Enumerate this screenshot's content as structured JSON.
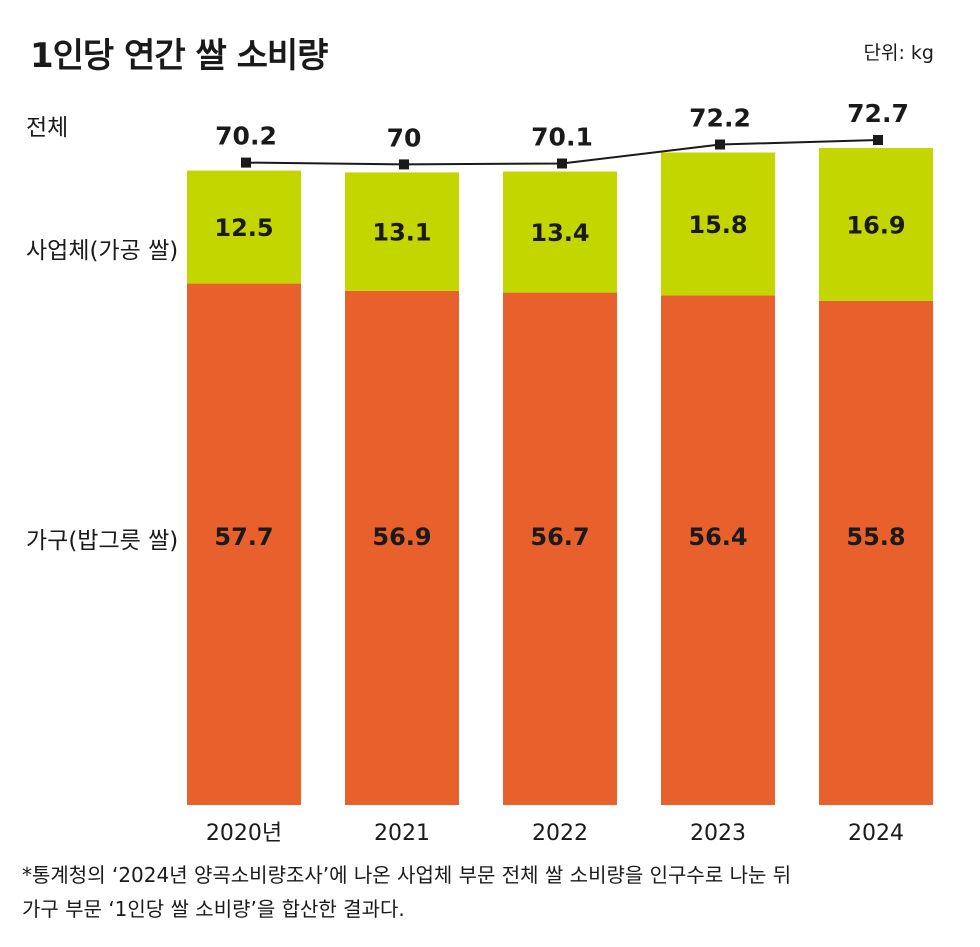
{
  "title": "1인당 연간 쌀 소비량",
  "unit_label": "단위: kg",
  "row_labels": {
    "total": "전체",
    "business": "사업체(가공 쌀)",
    "household": "가구(밥그릇 쌀)"
  },
  "footnote": {
    "line1": "*통계청의 ‘2024년 양곡소비량조사’에 나온 사업체 부문 전체 쌀 소비량을 인구수로 나눈 뒤",
    "line2": "가구 부문 ‘1인당 쌀 소비량’을 합산한 결과다."
  },
  "colors": {
    "household": "#E8612C",
    "business": "#C4D600",
    "line": "#1a1a1a"
  },
  "chart_data": {
    "type": "bar",
    "stacked": true,
    "title": "1인당 연간 쌀 소비량",
    "categories": [
      "2020년",
      "2021",
      "2022",
      "2023",
      "2024"
    ],
    "series": [
      {
        "name": "가구(밥그릇 쌀)",
        "values": [
          57.7,
          56.9,
          56.7,
          56.4,
          55.8
        ]
      },
      {
        "name": "사업체(가공 쌀)",
        "values": [
          12.5,
          13.1,
          13.4,
          15.8,
          16.9
        ]
      }
    ],
    "total": {
      "name": "전체",
      "labels": [
        "70.2",
        "70",
        "70.1",
        "72.2",
        "72.7"
      ],
      "values": [
        70.2,
        70,
        70.1,
        72.2,
        72.7
      ]
    },
    "unit": "kg",
    "ylim": [
      0,
      72.7
    ]
  }
}
